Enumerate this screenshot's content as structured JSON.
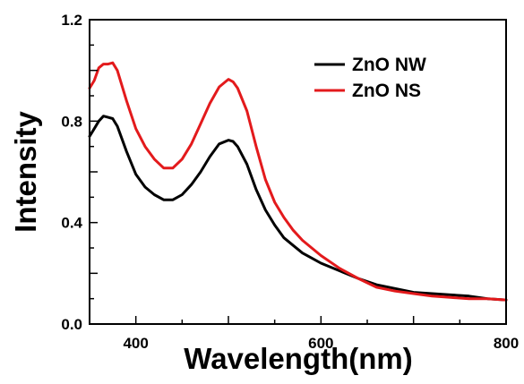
{
  "chart_data": {
    "type": "line",
    "title": "",
    "xlabel": "Wavelength(nm)",
    "ylabel": "Intensity",
    "xlim": [
      350,
      800
    ],
    "ylim": [
      0.0,
      1.2
    ],
    "x_ticks": [
      {
        "value": 400,
        "label": "400"
      },
      {
        "value": 600,
        "label": "600"
      },
      {
        "value": 800,
        "label": "800"
      }
    ],
    "y_ticks": [
      {
        "value": 0.0,
        "label": "0.0"
      },
      {
        "value": 0.4,
        "label": "0.4"
      },
      {
        "value": 0.8,
        "label": "0.8"
      },
      {
        "value": 1.2,
        "label": "1.2"
      }
    ],
    "grid": false,
    "legend_position": "top-right",
    "series": [
      {
        "name": "ZnO NW",
        "color": "#000000",
        "points": [
          [
            350,
            0.74
          ],
          [
            355,
            0.77
          ],
          [
            360,
            0.8
          ],
          [
            365,
            0.82
          ],
          [
            370,
            0.815
          ],
          [
            375,
            0.81
          ],
          [
            380,
            0.78
          ],
          [
            390,
            0.68
          ],
          [
            400,
            0.59
          ],
          [
            410,
            0.54
          ],
          [
            420,
            0.51
          ],
          [
            430,
            0.49
          ],
          [
            440,
            0.49
          ],
          [
            450,
            0.51
          ],
          [
            460,
            0.55
          ],
          [
            470,
            0.6
          ],
          [
            480,
            0.66
          ],
          [
            490,
            0.71
          ],
          [
            500,
            0.725
          ],
          [
            505,
            0.72
          ],
          [
            510,
            0.7
          ],
          [
            520,
            0.63
          ],
          [
            530,
            0.53
          ],
          [
            540,
            0.45
          ],
          [
            550,
            0.39
          ],
          [
            560,
            0.34
          ],
          [
            570,
            0.31
          ],
          [
            580,
            0.28
          ],
          [
            590,
            0.26
          ],
          [
            600,
            0.24
          ],
          [
            620,
            0.21
          ],
          [
            640,
            0.18
          ],
          [
            660,
            0.155
          ],
          [
            680,
            0.14
          ],
          [
            700,
            0.125
          ],
          [
            720,
            0.12
          ],
          [
            740,
            0.115
          ],
          [
            760,
            0.11
          ],
          [
            780,
            0.1
          ],
          [
            800,
            0.095
          ]
        ]
      },
      {
        "name": "ZnO NS",
        "color": "#e31a1c",
        "points": [
          [
            350,
            0.93
          ],
          [
            355,
            0.96
          ],
          [
            360,
            1.01
          ],
          [
            365,
            1.025
          ],
          [
            370,
            1.025
          ],
          [
            375,
            1.03
          ],
          [
            380,
            1.0
          ],
          [
            390,
            0.88
          ],
          [
            400,
            0.77
          ],
          [
            410,
            0.7
          ],
          [
            420,
            0.65
          ],
          [
            430,
            0.615
          ],
          [
            440,
            0.615
          ],
          [
            450,
            0.65
          ],
          [
            460,
            0.71
          ],
          [
            470,
            0.79
          ],
          [
            480,
            0.87
          ],
          [
            490,
            0.935
          ],
          [
            500,
            0.965
          ],
          [
            505,
            0.955
          ],
          [
            510,
            0.93
          ],
          [
            520,
            0.84
          ],
          [
            530,
            0.7
          ],
          [
            540,
            0.57
          ],
          [
            550,
            0.48
          ],
          [
            560,
            0.42
          ],
          [
            570,
            0.37
          ],
          [
            580,
            0.33
          ],
          [
            590,
            0.3
          ],
          [
            600,
            0.27
          ],
          [
            620,
            0.22
          ],
          [
            640,
            0.18
          ],
          [
            660,
            0.145
          ],
          [
            680,
            0.13
          ],
          [
            700,
            0.12
          ],
          [
            720,
            0.11
          ],
          [
            740,
            0.105
          ],
          [
            760,
            0.1
          ],
          [
            780,
            0.1
          ],
          [
            800,
            0.095
          ]
        ]
      }
    ]
  }
}
